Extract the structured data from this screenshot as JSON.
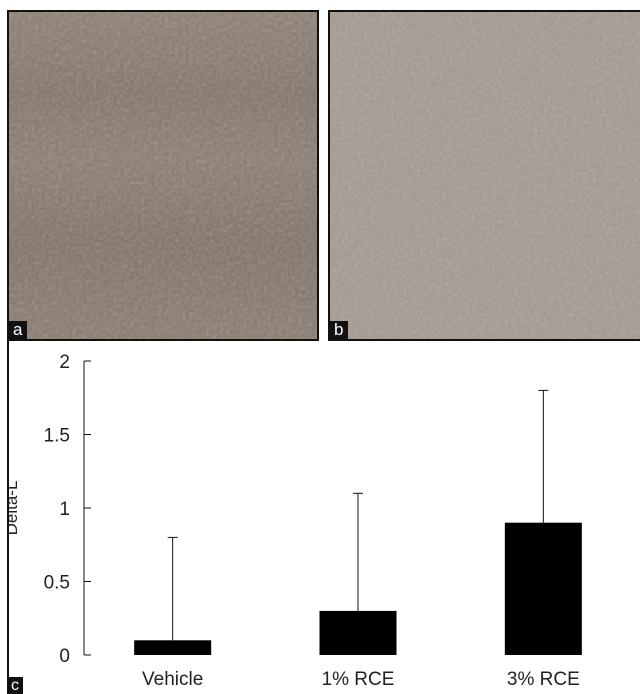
{
  "panels": {
    "a": {
      "label": "a",
      "tone": "#8c7e72"
    },
    "b": {
      "label": "b",
      "tone": "#a69a90"
    },
    "c": {
      "label": "c"
    }
  },
  "chart_data": {
    "type": "bar",
    "categories": [
      "Vehicle",
      "1% RCE",
      "3% RCE"
    ],
    "values": [
      0.1,
      0.3,
      0.9
    ],
    "error_upper": [
      0.8,
      1.1,
      1.8
    ],
    "ylabel": "Delta-L",
    "xlabel": "",
    "ylim": [
      0,
      2
    ],
    "yticks": [
      "0",
      "0.5",
      "1",
      "1.5",
      "2"
    ],
    "grid": false,
    "bar_color": "#000000"
  }
}
